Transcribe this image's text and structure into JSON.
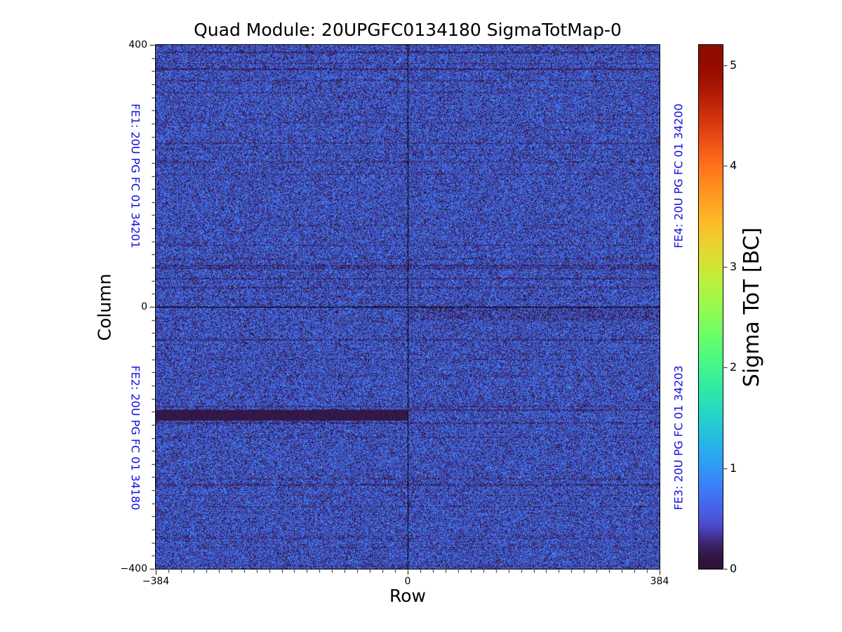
{
  "title": "Quad Module: 20UPGFC0134180 SigmaTotMap-0",
  "colors": {
    "fe_label_blue": "#1111dd",
    "axis_black": "#000000",
    "background": "#ffffff"
  },
  "chart_data": {
    "type": "heatmap",
    "title": "Quad Module: 20UPGFC0134180 SigmaTotMap-0",
    "x_axis": {
      "label": "Row",
      "range": [
        -384,
        384
      ],
      "major_ticks": [
        {
          "value": -384,
          "label": "−384"
        },
        {
          "value": 0,
          "label": "0"
        },
        {
          "value": 384,
          "label": "384"
        }
      ],
      "minor_divisions": 40
    },
    "y_axis": {
      "label": "Column",
      "range": [
        -400,
        400
      ],
      "major_ticks": [
        {
          "value": 400,
          "label": "400"
        },
        {
          "value": 0,
          "label": "0"
        },
        {
          "value": -400,
          "label": "−400"
        }
      ],
      "minor_divisions": 40
    },
    "colorbar": {
      "label": "Sigma ToT [BC]",
      "colormap": "turbo",
      "vmin": 0,
      "vmax": 5.2,
      "ticks": [
        {
          "value": 0,
          "label": "0"
        },
        {
          "value": 1,
          "label": "1"
        },
        {
          "value": 2,
          "label": "2"
        },
        {
          "value": 3,
          "label": "3"
        },
        {
          "value": 4,
          "label": "4"
        },
        {
          "value": 5,
          "label": "5"
        }
      ]
    },
    "quadrants": [
      {
        "chip": "FE1",
        "label": "FE1: 20U PG FC 01 34201",
        "position": "top-left",
        "row_range": [
          -384,
          0
        ],
        "column_range": [
          0,
          400
        ]
      },
      {
        "chip": "FE2",
        "label": "FE2: 20U PG FC 01 34180",
        "position": "bottom-left",
        "row_range": [
          -384,
          0
        ],
        "column_range": [
          -400,
          0
        ]
      },
      {
        "chip": "FE3",
        "label": "FE3: 20U PG FC 01 34203",
        "position": "bottom-right",
        "row_range": [
          0,
          384
        ],
        "column_range": [
          -400,
          0
        ]
      },
      {
        "chip": "FE4",
        "label": "FE4: 20U PG FC 01 34200",
        "position": "top-right",
        "row_range": [
          0,
          384
        ],
        "column_range": [
          0,
          400
        ]
      }
    ],
    "data_summary": {
      "description": "Per-pixel sigma ToT noise map: speckled mix of dark-purple and royal-blue pixels, i.e. sigma values mostly between 0 and 1 BC, with faint darker horizontal streak rows and rare hot outlier pixels",
      "typical_value_range_bc": [
        0.0,
        1.0
      ],
      "rare_outliers_up_to_bc": 5.2,
      "anomalies": [
        {
          "type": "uniform low-sigma horizontal band",
          "chip": "FE2",
          "row_range": [
            -384,
            0
          ],
          "column_range": [
            -174,
            -158
          ],
          "approx_value_bc": 0.15
        }
      ]
    },
    "grid": false,
    "legend": false
  }
}
